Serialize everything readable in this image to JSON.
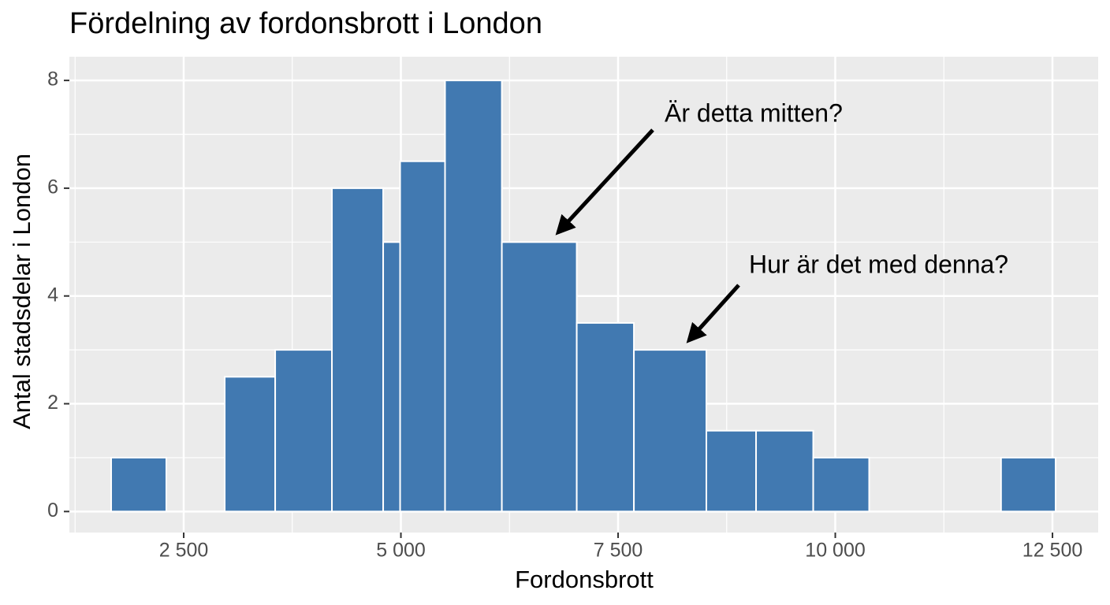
{
  "chart_data": {
    "type": "histogram",
    "title": "Fördelning av fordonsbrott i London",
    "x_label": "Fordonsbrott",
    "y_label": "Antal stadsdelar i London",
    "bins": [
      1665,
      2300,
      2972,
      3553,
      4206,
      4796,
      4991,
      5508,
      6162,
      7024,
      7682,
      8516,
      9088,
      9746,
      10390,
      11908,
      12536
    ],
    "values": [
      1,
      0,
      2.5,
      3,
      6,
      5,
      6.5,
      8,
      5,
      3.5,
      3,
      1.5,
      1.5,
      1,
      0,
      1
    ],
    "color": "#4179b1",
    "xlim": [
      1184,
      13026
    ],
    "ylim": [
      -0.39,
      8.44
    ],
    "xticks": [
      {
        "value": 2500,
        "label": "2 500"
      },
      {
        "value": 5000,
        "label": "5 000"
      },
      {
        "value": 7500,
        "label": "7 500"
      },
      {
        "value": 10000,
        "label": "10 000"
      },
      {
        "value": 12500,
        "label": "12 500"
      }
    ],
    "yticks": [
      0,
      2,
      4,
      6,
      8
    ],
    "minor_xticks": [
      1250,
      3750,
      6250,
      8750,
      11250
    ],
    "minor_yticks": [
      1,
      3,
      5,
      7
    ],
    "grid": true,
    "annotations": [
      "Är detta mitten?",
      "Hur är det med denna?"
    ]
  }
}
